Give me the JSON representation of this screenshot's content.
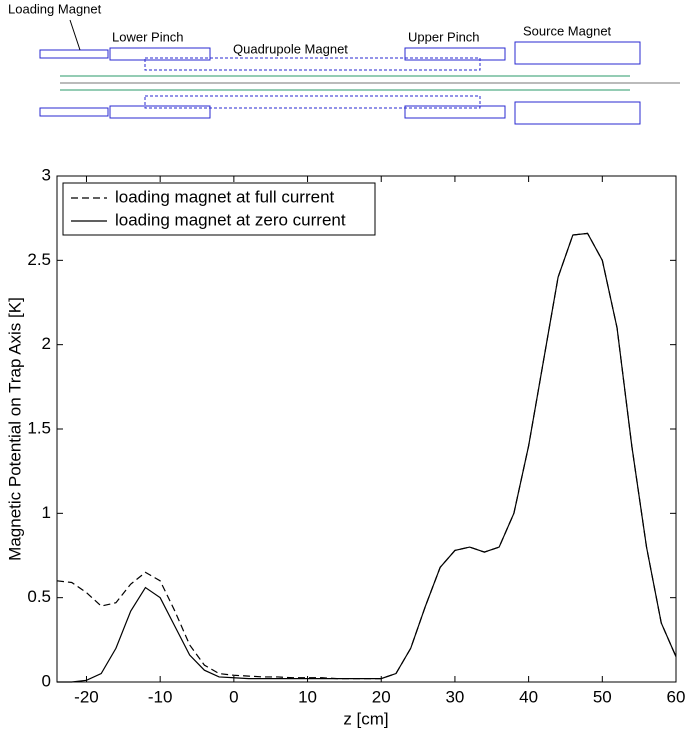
{
  "diagram": {
    "labels": [
      "Loading Magnet",
      "Lower Pinch",
      "Quadrupole Magnet",
      "Upper Pinch",
      "Source Magnet"
    ]
  },
  "chart_data": {
    "type": "line",
    "xlabel": "z [cm]",
    "ylabel": "Magnetic Potential on Trap Axis [K]",
    "x": [
      -24,
      -22,
      -20,
      -18,
      -16,
      -14,
      -12,
      -10,
      -8,
      -6,
      -4,
      -2,
      0,
      2,
      4,
      6,
      8,
      10,
      12,
      14,
      16,
      18,
      20,
      22,
      24,
      26,
      28,
      30,
      32,
      34,
      36,
      38,
      40,
      42,
      44,
      46,
      48,
      50,
      52,
      54,
      56,
      58,
      60
    ],
    "series": [
      {
        "name": "loading magnet at full current",
        "color": "#000000",
        "dash": true,
        "values": [
          0.6,
          0.59,
          0.53,
          0.45,
          0.47,
          0.58,
          0.65,
          0.6,
          0.42,
          0.22,
          0.1,
          0.05,
          0.04,
          0.035,
          0.03,
          0.03,
          0.025,
          0.025,
          0.025,
          0.02,
          0.02,
          0.02,
          0.02,
          0.05,
          0.2,
          0.45,
          0.68,
          0.78,
          0.8,
          0.77,
          0.8,
          1.0,
          1.4,
          1.9,
          2.4,
          2.65,
          2.66,
          2.5,
          2.1,
          1.4,
          0.8,
          0.35,
          0.15
        ]
      },
      {
        "name": "loading magnet at zero current",
        "color": "#000000",
        "dash": false,
        "values": [
          0,
          0,
          0.01,
          0.05,
          0.2,
          0.42,
          0.56,
          0.5,
          0.33,
          0.16,
          0.07,
          0.03,
          0.025,
          0.02,
          0.02,
          0.02,
          0.02,
          0.02,
          0.02,
          0.02,
          0.02,
          0.02,
          0.02,
          0.05,
          0.2,
          0.45,
          0.68,
          0.78,
          0.8,
          0.77,
          0.8,
          1.0,
          1.4,
          1.9,
          2.4,
          2.65,
          2.66,
          2.5,
          2.1,
          1.4,
          0.8,
          0.35,
          0.15
        ]
      }
    ],
    "xlim": [
      -24,
      60
    ],
    "xticks": [
      -20,
      -10,
      0,
      10,
      20,
      30,
      40,
      50,
      60
    ],
    "ylim": [
      0,
      3
    ],
    "yticks": [
      0,
      0.5,
      1,
      1.5,
      2,
      2.5,
      3
    ],
    "grid": false,
    "legend": "upper-left"
  }
}
